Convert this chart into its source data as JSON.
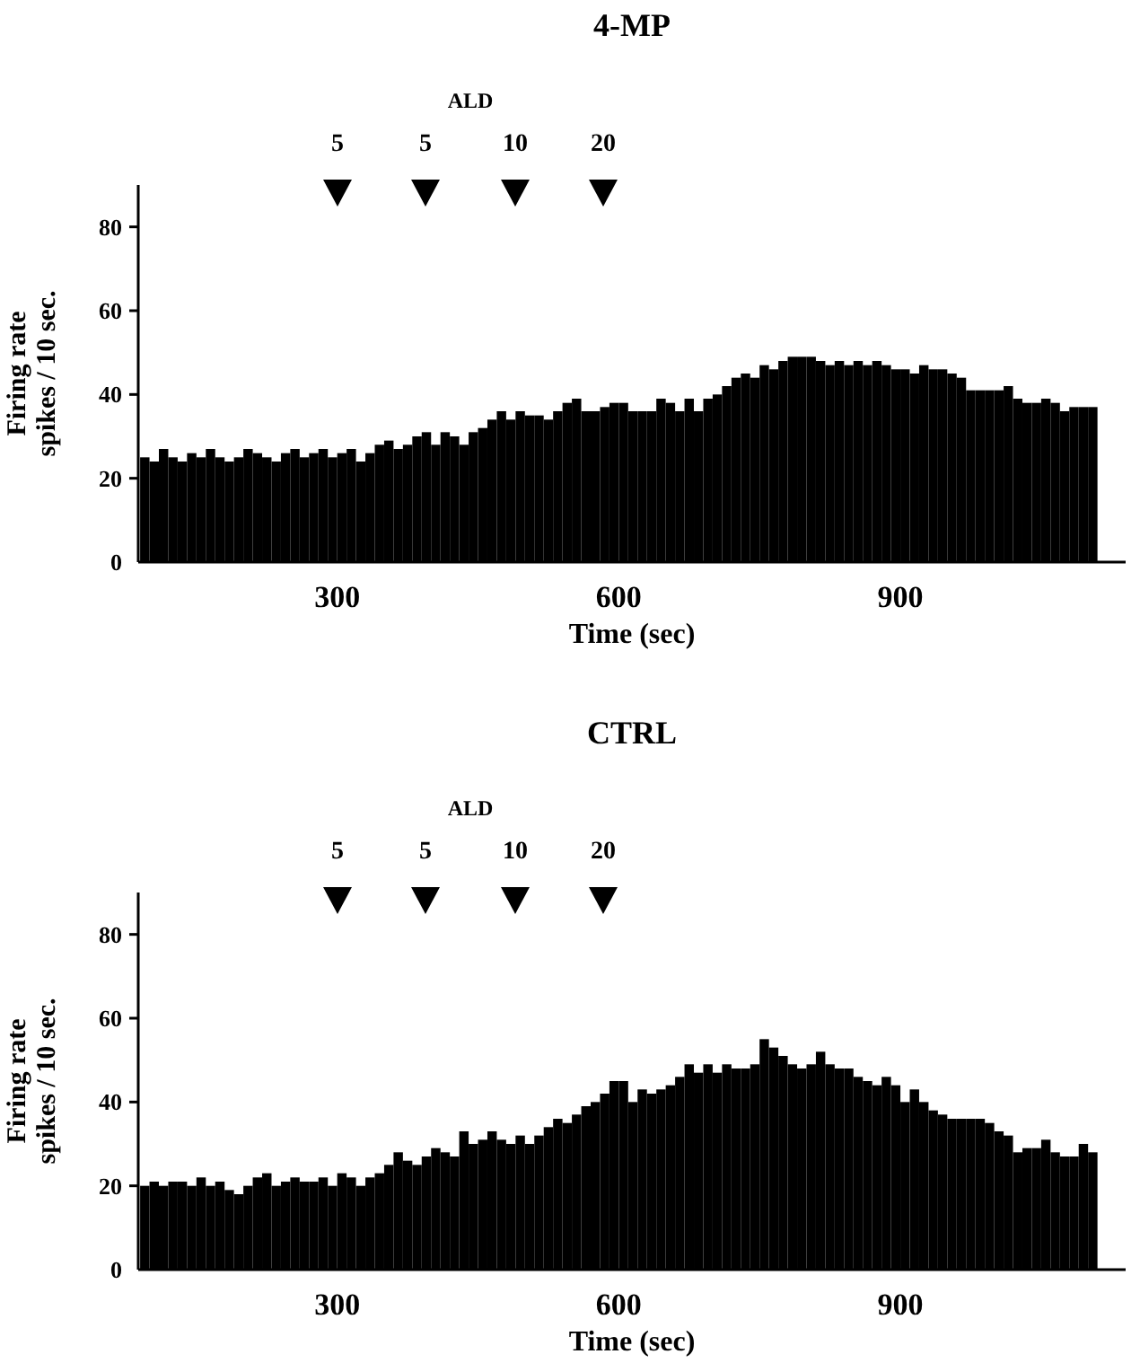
{
  "chart_data": [
    {
      "type": "histogram",
      "title": "4-MP",
      "xlabel": "Time (sec)",
      "ylabel": "Firing rate\nspikes / 10 sec.",
      "xlim": [
        88,
        1140
      ],
      "xticks": [
        300,
        600,
        900
      ],
      "ylim": [
        0,
        90
      ],
      "yticks": [
        0,
        20,
        40,
        60,
        80
      ],
      "color": "#000000",
      "bins": [
        90,
        100,
        110,
        120,
        130,
        140,
        150,
        160,
        170,
        180,
        190,
        200,
        210,
        220,
        230,
        240,
        250,
        260,
        270,
        280,
        290,
        300,
        310,
        320,
        330,
        340,
        350,
        360,
        370,
        380,
        390,
        400,
        410,
        420,
        430,
        440,
        450,
        460,
        470,
        480,
        490,
        500,
        510,
        520,
        530,
        540,
        550,
        560,
        570,
        580,
        590,
        600,
        610,
        620,
        630,
        640,
        650,
        660,
        670,
        680,
        690,
        700,
        710,
        720,
        730,
        740,
        750,
        760,
        770,
        780,
        790,
        800,
        810,
        820,
        830,
        840,
        850,
        860,
        870,
        880,
        890,
        900,
        910,
        920,
        930,
        940,
        950,
        960,
        970,
        980,
        990,
        1000,
        1010,
        1020,
        1030,
        1040,
        1050,
        1060,
        1070,
        1080,
        1090,
        1100,
        1110
      ],
      "values": [
        25,
        24,
        27,
        25,
        24,
        26,
        25,
        27,
        25,
        24,
        25,
        27,
        26,
        25,
        24,
        26,
        27,
        25,
        26,
        27,
        25,
        26,
        27,
        24,
        26,
        28,
        29,
        27,
        28,
        30,
        31,
        28,
        31,
        30,
        28,
        31,
        32,
        34,
        36,
        34,
        36,
        35,
        35,
        34,
        36,
        38,
        39,
        36,
        36,
        37,
        38,
        38,
        36,
        36,
        36,
        39,
        38,
        36,
        39,
        36,
        39,
        40,
        42,
        44,
        45,
        44,
        47,
        46,
        48,
        49,
        49,
        49,
        48,
        47,
        48,
        47,
        48,
        47,
        48,
        47,
        46,
        46,
        45,
        47,
        46,
        46,
        45,
        44,
        41,
        41,
        41,
        41,
        42,
        39,
        38,
        38,
        39,
        38,
        36,
        37,
        37,
        37
      ],
      "annotations": [
        "ALD",
        "5",
        "5",
        "10",
        "20"
      ]
    },
    {
      "type": "histogram",
      "title": "CTRL",
      "xlabel": "Time (sec)",
      "ylabel": "Firing rate\nspikes / 10 sec.",
      "xlim": [
        88,
        1140
      ],
      "xticks": [
        300,
        600,
        900
      ],
      "ylim": [
        0,
        90
      ],
      "yticks": [
        0,
        20,
        40,
        60,
        80
      ],
      "color": "#000000",
      "bins": [
        90,
        100,
        110,
        120,
        130,
        140,
        150,
        160,
        170,
        180,
        190,
        200,
        210,
        220,
        230,
        240,
        250,
        260,
        270,
        280,
        290,
        300,
        310,
        320,
        330,
        340,
        350,
        360,
        370,
        380,
        390,
        400,
        410,
        420,
        430,
        440,
        450,
        460,
        470,
        480,
        490,
        500,
        510,
        520,
        530,
        540,
        550,
        560,
        570,
        580,
        590,
        600,
        610,
        620,
        630,
        640,
        650,
        660,
        670,
        680,
        690,
        700,
        710,
        720,
        730,
        740,
        750,
        760,
        770,
        780,
        790,
        800,
        810,
        820,
        830,
        840,
        850,
        860,
        870,
        880,
        890,
        900,
        910,
        920,
        930,
        940,
        950,
        960,
        970,
        980,
        990,
        1000,
        1010,
        1020,
        1030,
        1040,
        1050,
        1060,
        1070,
        1080,
        1090,
        1100,
        1110
      ],
      "values": [
        20,
        21,
        20,
        21,
        21,
        20,
        22,
        20,
        21,
        19,
        18,
        20,
        22,
        23,
        20,
        21,
        22,
        21,
        21,
        22,
        20,
        23,
        22,
        20,
        22,
        23,
        25,
        28,
        26,
        25,
        27,
        29,
        28,
        27,
        33,
        30,
        31,
        33,
        31,
        30,
        32,
        30,
        32,
        34,
        36,
        35,
        37,
        39,
        40,
        42,
        45,
        45,
        40,
        43,
        42,
        43,
        44,
        46,
        49,
        47,
        49,
        47,
        49,
        48,
        48,
        49,
        55,
        53,
        51,
        49,
        48,
        49,
        52,
        49,
        48,
        48,
        46,
        45,
        44,
        46,
        44,
        40,
        43,
        40,
        38,
        37,
        36,
        36,
        36,
        36,
        35,
        33,
        32,
        28,
        29,
        29,
        31,
        28,
        27,
        27,
        30,
        28
      ],
      "annotations": [
        "ALD",
        "5",
        "5",
        "10",
        "20"
      ]
    }
  ]
}
